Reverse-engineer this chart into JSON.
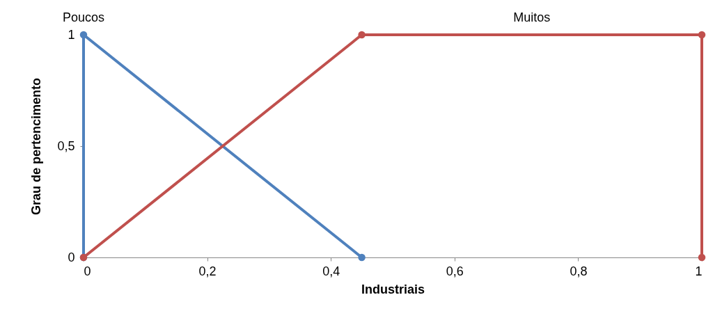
{
  "chart_data": {
    "type": "line",
    "xlabel": "Industriais",
    "ylabel": "Grau de pertencimento",
    "xlim": [
      0,
      1
    ],
    "ylim": [
      0,
      1
    ],
    "xticks": [
      0,
      {
        "value": 0.2,
        "label": "0,2"
      },
      {
        "value": 0.4,
        "label": "0,4"
      },
      {
        "value": 0.6,
        "label": "0,6"
      },
      {
        "value": 0.8,
        "label": "0,8"
      },
      1
    ],
    "yticks": [
      0,
      {
        "value": 0.5,
        "label": "0,5"
      },
      1
    ],
    "grid": false,
    "legend": false,
    "marker": "circle",
    "line_style": "solid",
    "series": [
      {
        "name": "Poucos",
        "color": "#4f81bd",
        "x": [
          0,
          0,
          0.45
        ],
        "values": [
          0,
          1,
          0
        ]
      },
      {
        "name": "Muitos",
        "color": "#c0504d",
        "x": [
          0,
          0.45,
          1,
          1
        ],
        "values": [
          0,
          1,
          1,
          0
        ]
      }
    ]
  }
}
